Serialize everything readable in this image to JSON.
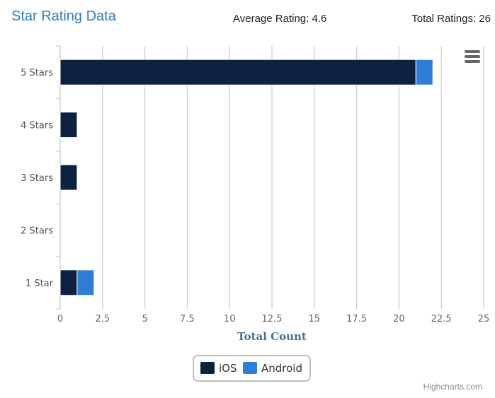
{
  "header": {
    "title": "Star Rating Data",
    "average_rating": "Average Rating: 4.6",
    "total_ratings": "Total Ratings: 26"
  },
  "credits": "Highcharts.com",
  "colors": {
    "ios": "#0d2240",
    "android": "#2e7ed6",
    "title": "#2f7ec1",
    "axis_title": "#4a6f99"
  },
  "chart_data": {
    "type": "bar",
    "orientation": "horizontal",
    "stacked": true,
    "categories": [
      "5 Stars",
      "4 Stars",
      "3 Stars",
      "2 Stars",
      "1 Star"
    ],
    "series": [
      {
        "name": "iOS",
        "values": [
          21,
          1,
          1,
          0,
          1
        ]
      },
      {
        "name": "Android",
        "values": [
          1,
          0,
          0,
          0,
          1
        ]
      }
    ],
    "xlabel": "Total Count",
    "xlim": [
      0,
      25
    ],
    "xticks": [
      "0",
      "2.5",
      "5",
      "7.5",
      "10",
      "12.5",
      "15",
      "17.5",
      "20",
      "22.5",
      "25"
    ],
    "grid": true,
    "legend": "bottom-center"
  }
}
